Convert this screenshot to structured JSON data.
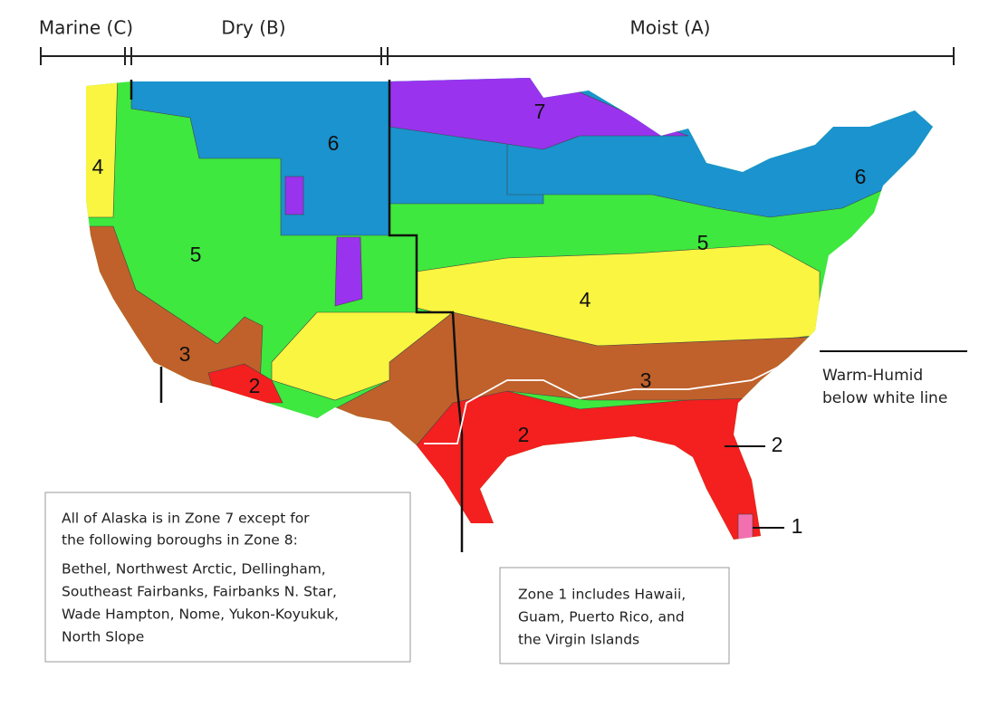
{
  "header": {
    "regions": [
      "Marine (C)",
      "Dry (B)",
      "Moist (A)"
    ]
  },
  "map": {
    "zone_labels": [
      "4",
      "6",
      "7",
      "6",
      "5",
      "5",
      "4",
      "3",
      "3",
      "2",
      "2",
      "2",
      "1"
    ]
  },
  "annotations": {
    "warm_humid": [
      "Warm-Humid",
      "below white line"
    ]
  },
  "notes": {
    "alaska": {
      "intro": [
        "All of Alaska is in Zone 7 except for",
        "the following boroughs in Zone 8:"
      ],
      "boroughs": [
        "Bethel, Northwest Arctic, Dellingham,",
        "Southeast Fairbanks, Fairbanks N. Star,",
        "Wade Hampton, Nome, Yukon-Koyukuk,",
        "North Slope"
      ]
    },
    "zone1": [
      "Zone 1 includes Hawaii,",
      "Guam, Puerto Rico, and",
      "the Virgin Islands"
    ]
  }
}
